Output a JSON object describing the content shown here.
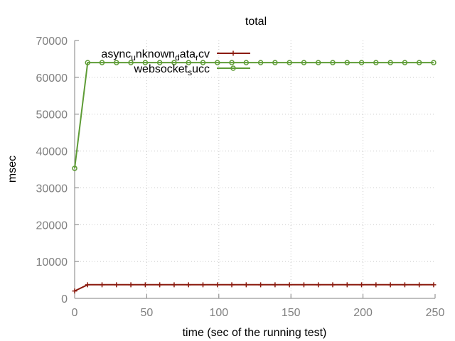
{
  "chart_data": {
    "type": "line",
    "title": "total",
    "xlabel": "time (sec of the running test)",
    "ylabel": "msec",
    "xlim": [
      0,
      250
    ],
    "ylim": [
      0,
      70000
    ],
    "xticks": [
      0,
      50,
      100,
      150,
      200,
      250
    ],
    "yticks": [
      0,
      10000,
      20000,
      30000,
      40000,
      50000,
      60000,
      70000
    ],
    "grid": true,
    "legend_position": "top-left",
    "series": [
      {
        "name_parts": [
          {
            "t": "async",
            "sub": false
          },
          {
            "t": "u",
            "sub": true
          },
          {
            "t": "nknown",
            "sub": false
          },
          {
            "t": "d",
            "sub": true
          },
          {
            "t": "ata",
            "sub": false
          },
          {
            "t": "r",
            "sub": true
          },
          {
            "t": "cv",
            "sub": false
          }
        ],
        "color": "#8b1a0e",
        "marker": "plus",
        "x": [
          0,
          9,
          19,
          29,
          39,
          49,
          59,
          69,
          79,
          89,
          99,
          109,
          119,
          129,
          139,
          149,
          159,
          169,
          179,
          189,
          199,
          209,
          219,
          229,
          239,
          249
        ],
        "y": [
          2000,
          3700,
          3700,
          3700,
          3700,
          3700,
          3700,
          3700,
          3700,
          3700,
          3700,
          3700,
          3700,
          3700,
          3700,
          3700,
          3700,
          3700,
          3700,
          3700,
          3700,
          3700,
          3700,
          3700,
          3700,
          3700
        ]
      },
      {
        "name_parts": [
          {
            "t": "websocket",
            "sub": false
          },
          {
            "t": "s",
            "sub": true
          },
          {
            "t": "ucc",
            "sub": false
          }
        ],
        "color": "#5e9c36",
        "marker": "circle",
        "x": [
          0,
          9,
          19,
          29,
          39,
          49,
          59,
          69,
          79,
          89,
          99,
          109,
          119,
          129,
          139,
          149,
          159,
          169,
          179,
          189,
          199,
          209,
          219,
          229,
          239,
          249
        ],
        "y": [
          35300,
          64000,
          64000,
          64000,
          64000,
          64000,
          64000,
          64000,
          64000,
          64000,
          64000,
          64000,
          64000,
          64000,
          64000,
          64000,
          64000,
          64000,
          64000,
          64000,
          64000,
          64000,
          64000,
          64000,
          64000,
          64000
        ]
      }
    ]
  }
}
